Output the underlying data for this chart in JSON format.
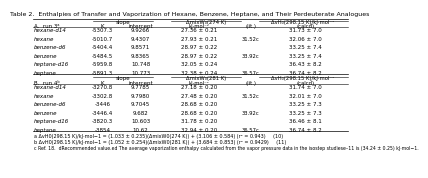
{
  "title": "Table 2.  Enthalpies of Transfer and Vaporization of Hexane, Benzene, Heptane, and Their Perdeuterate Analogues",
  "rows_A": [
    [
      "hexane-d14",
      "-5307.3",
      "9.9266",
      "27.36 ± 0.21",
      "",
      "31.73 ± 7.0"
    ],
    [
      "hexane",
      "-5010.7",
      "9.4307",
      "27.93 ± 0.21",
      "31.52c",
      "32.06 ± 7.0"
    ],
    [
      "benzene-d6",
      "-5404.4",
      "9.8571",
      "28.97 ± 0.22",
      "",
      "33.25 ± 7.4"
    ],
    [
      "benzene",
      "-5484.5",
      "9.8365",
      "28.97 ± 0.22",
      "33.92c",
      "33.25 ± 7.4"
    ],
    [
      "heptane-d16",
      "-5959.8",
      "10.748",
      "32.05 ± 0.24",
      "",
      "36.43 ± 8.2"
    ],
    [
      "heptane",
      "-5891.3",
      "10.773",
      "32.38 ± 0.24",
      "36.57c",
      "36.74 ± 8.2"
    ]
  ],
  "rows_B": [
    [
      "hexane-d14",
      "-3270.8",
      "9.7785",
      "27.18 ± 0.20",
      "",
      "31.74 ± 7.0"
    ],
    [
      "hexane",
      "-3302.8",
      "9.7980",
      "27.48 ± 0.20",
      "31.52c",
      "32.01 ± 7.0"
    ],
    [
      "benzene-d6",
      "-3446",
      "9.7045",
      "28.68 ± 0.20",
      "",
      "33.25 ± 7.3"
    ],
    [
      "benzene",
      "-3446.4",
      "9.682",
      "28.68 ± 0.20",
      "33.92c",
      "33.25 ± 7.3"
    ],
    [
      "heptane-d16",
      "-3820.3",
      "10.603",
      "31.78 ± 0.20",
      "",
      "36.46 ± 8.1"
    ],
    [
      "heptane",
      "-3854",
      "10.62",
      "32.94 ± 0.20",
      "36.57c",
      "36.74 ± 8.2"
    ]
  ],
  "footnote_a": "a ΔvH0(298.15 K)/kJ·mol−1 = (1.033 ± 0.235)(ΔmixW0(274 K)) + (3.106 ± 0.584) (r² = 0.943)     (10)",
  "footnote_b": "b ΔvH0(298.15 K)/kJ·mol−1 = (1.052 ± 0.254)(ΔmixW0(281 K)) + (3.684 ± 0.853) (r² = 0.9429)     (11)",
  "footnote_c": "c Ref. 18.  dRecommended value.ed The average vaporization enthalpy calculated from the vapor pressure data in the isostep studiese–11 is (34.24 ± 0.25) kJ·mol−1.",
  "bg_color": "#ffffff"
}
